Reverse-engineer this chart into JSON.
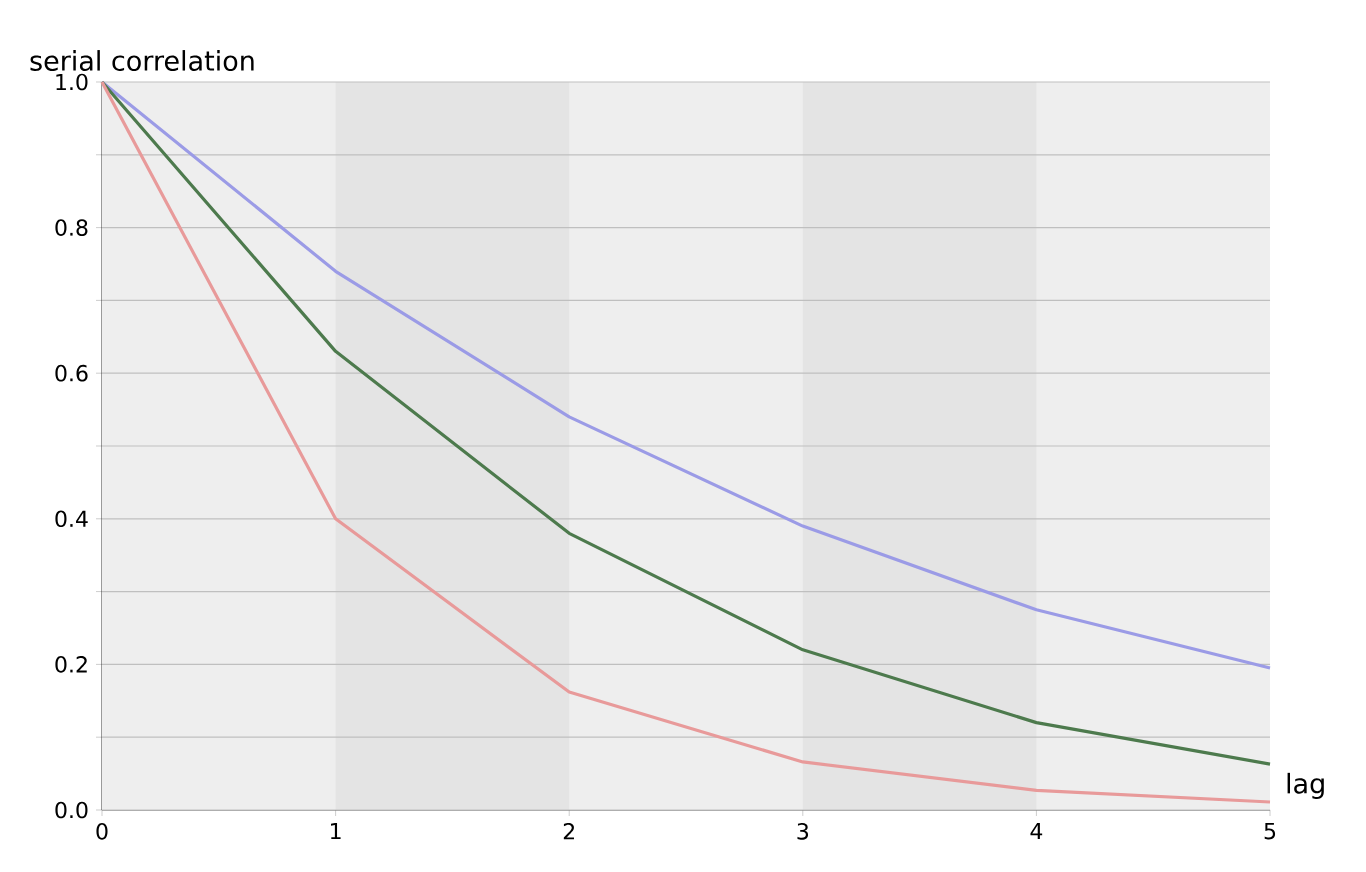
{
  "chart_data": {
    "type": "line",
    "xlabel": "lag",
    "ylabel": "serial correlation",
    "x": [
      0,
      1,
      2,
      3,
      4,
      5
    ],
    "series": [
      {
        "color": "#9b9be6",
        "values": [
          1.0,
          0.74,
          0.54,
          0.39,
          0.275,
          0.195
        ]
      },
      {
        "color": "#4d7a4d",
        "values": [
          1.0,
          0.63,
          0.38,
          0.22,
          0.12,
          0.063
        ]
      },
      {
        "color": "#e89a9a",
        "values": [
          1.0,
          0.4,
          0.162,
          0.066,
          0.027,
          0.011
        ]
      }
    ],
    "xlim": [
      0,
      5
    ],
    "ylim": [
      0,
      1
    ],
    "xticks": [
      0,
      1,
      2,
      3,
      4,
      5
    ],
    "yticks": [
      {
        "value": 0,
        "label": "0.0"
      },
      {
        "value": 0.1,
        "label": null
      },
      0.2,
      {
        "value": 0.3,
        "label": null
      },
      0.4,
      {
        "value": 0.5,
        "label": null
      },
      0.6,
      {
        "value": 0.7,
        "label": null
      },
      0.8,
      {
        "value": 0.9,
        "label": null
      },
      {
        "value": 1,
        "label": "1.0"
      }
    ],
    "bands": [
      {
        "axis": "x",
        "from": 1,
        "to": 2,
        "color": "#e4e4e4"
      },
      {
        "axis": "x",
        "from": 3,
        "to": 4,
        "color": "#e4e4e4"
      }
    ],
    "grid": "y",
    "marker": "none",
    "line_style": "solid"
  }
}
